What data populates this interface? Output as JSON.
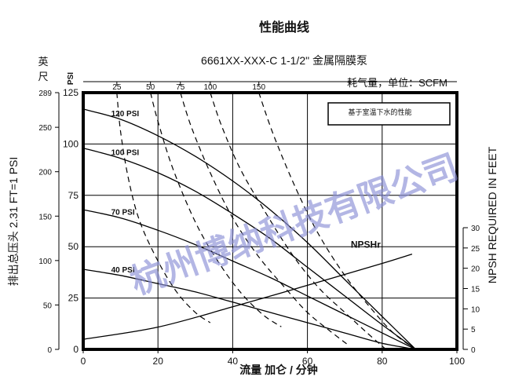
{
  "chart_data": {
    "type": "line",
    "title": "性能曲线",
    "subtitle": "6661XX-XXX-C  1-1/2\"  金属隔膜泵",
    "air_label": "耗气量，单位：SCFM",
    "note": "基于室温下水的性能",
    "xlabel": "流量 加仑 / 分钟",
    "ylabel_left": "排出总压头 2.31 FT=1 PSI",
    "ylabel_left_unit": "英尺",
    "ylabel_psi_unit": "PSI",
    "ylabel_right": "NPSH REQUIRED IN FEET",
    "watermark": "杭州博纳科技有限公司",
    "xlim": [
      0,
      100
    ],
    "ylim_psi": [
      0,
      125
    ],
    "x_ticks": [
      "0",
      "20",
      "40",
      "60",
      "80",
      "100"
    ],
    "psi_ticks": [
      "0",
      "25",
      "50",
      "75",
      "100",
      "125"
    ],
    "feet_ticks": [
      "0",
      "50",
      "100",
      "150",
      "200",
      "250",
      "289"
    ],
    "npsh_ticks": [
      "0",
      "5",
      "10",
      "15",
      "20",
      "25",
      "30"
    ],
    "npsh_ylim": [
      0,
      30
    ],
    "air_ticks": [
      "25",
      "50",
      "75",
      "100",
      "150"
    ],
    "grid": true,
    "pressure_series": [
      {
        "name": "120 PSI",
        "x": [
          0,
          10,
          20,
          30,
          40,
          50,
          60,
          70,
          80,
          89
        ],
        "y": [
          117,
          112,
          104,
          94,
          82,
          68,
          52,
          34,
          16,
          0
        ]
      },
      {
        "name": "100 PSI",
        "x": [
          0,
          10,
          20,
          30,
          40,
          50,
          60,
          70,
          80,
          89
        ],
        "y": [
          98,
          93,
          86,
          77,
          66,
          54,
          40,
          26,
          12,
          0
        ]
      },
      {
        "name": "70 PSI",
        "x": [
          0,
          10,
          20,
          30,
          40,
          50,
          60,
          70,
          80,
          89
        ],
        "y": [
          68,
          64,
          58,
          51,
          43,
          35,
          26,
          17,
          8,
          0
        ]
      },
      {
        "name": "40 PSI",
        "x": [
          0,
          10,
          20,
          30,
          40,
          50,
          60,
          70,
          80,
          89
        ],
        "y": [
          39,
          36,
          32,
          28,
          23,
          18,
          13,
          8,
          3,
          0
        ]
      }
    ],
    "air_series": [
      {
        "name": "25",
        "x": [
          9,
          10,
          12,
          15,
          20,
          25,
          30,
          34
        ],
        "y": [
          125,
          106,
          84,
          63,
          43,
          28,
          18,
          13
        ]
      },
      {
        "name": "50",
        "x": [
          18,
          20,
          24,
          30,
          36,
          42,
          48,
          53
        ],
        "y": [
          125,
          111,
          88,
          62,
          43,
          28,
          17,
          11
        ]
      },
      {
        "name": "75",
        "x": [
          26,
          29,
          34,
          40,
          47,
          54,
          60,
          66,
          71
        ],
        "y": [
          125,
          108,
          86,
          64,
          45,
          30,
          18,
          9,
          2
        ]
      },
      {
        "name": "100",
        "x": [
          34,
          37,
          42,
          49,
          56,
          63,
          70,
          76,
          81
        ],
        "y": [
          125,
          109,
          88,
          66,
          46,
          30,
          18,
          8,
          0
        ]
      },
      {
        "name": "150",
        "x": [
          47,
          51,
          57,
          63,
          70,
          77,
          83,
          89
        ],
        "y": [
          125,
          104,
          78,
          56,
          36,
          20,
          8,
          0
        ]
      }
    ],
    "npsh_series": {
      "name": "NPSHr",
      "x": [
        0,
        20,
        40,
        60,
        80,
        88
      ],
      "y": [
        2.5,
        5.5,
        10.5,
        15.8,
        21.2,
        23.5
      ]
    }
  }
}
